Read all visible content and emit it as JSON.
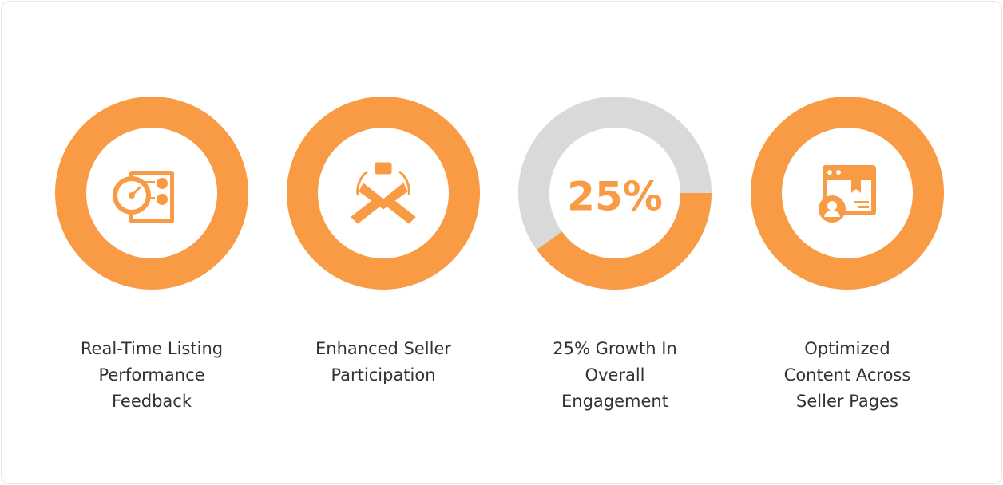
{
  "items": [
    {
      "label": [
        "Real-Time Listing",
        "Performance",
        "Feedback"
      ]
    },
    {
      "label": [
        "Enhanced Seller",
        "Participation"
      ]
    },
    {
      "stat": "25%",
      "label": [
        "25% Growth In",
        "Overall",
        "Engagement"
      ]
    },
    {
      "label": [
        "Optimized",
        "Content Across",
        "Seller Pages"
      ]
    }
  ]
}
